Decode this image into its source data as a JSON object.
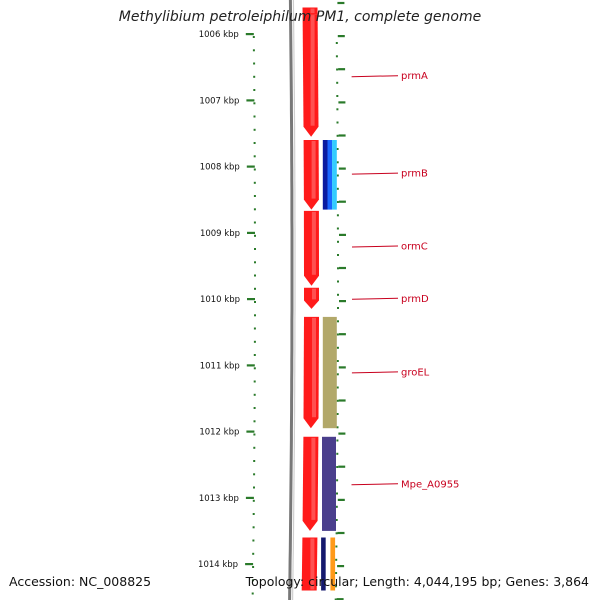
{
  "title": "Methylibium petroleiphilum PM1, complete genome",
  "accession_label": "Accession: NC_008825",
  "topology_label": "Topology: circular; Length: 4,044,195 bp; Genes: 3,864",
  "colors": {
    "backbone": "#787878",
    "tick": "#2a7a2a",
    "gene": "#ff1a1a",
    "label": "#c8001e",
    "cog_blue": "#1a66ff",
    "cog_olive": "#b2a86a",
    "cog_purple": "#4a3f8c",
    "cog_navy": "#15196e",
    "cog_orange": "#ff9a1a"
  },
  "axis": {
    "unit": "kbp",
    "ticks": [
      {
        "kbp": 1006,
        "label": "1006 kbp"
      },
      {
        "kbp": 1007,
        "label": "1007 kbp"
      },
      {
        "kbp": 1008,
        "label": "1008 kbp"
      },
      {
        "kbp": 1009,
        "label": "1009 kbp"
      },
      {
        "kbp": 1010,
        "label": "1010 kbp"
      },
      {
        "kbp": 1011,
        "label": "1011 kbp"
      },
      {
        "kbp": 1012,
        "label": "1012 kbp"
      },
      {
        "kbp": 1013,
        "label": "1013 kbp"
      },
      {
        "kbp": 1014,
        "label": "1014 kbp"
      }
    ]
  },
  "genes": [
    {
      "name": "",
      "start": 1005.6,
      "end": 1005.7,
      "arrow": false
    },
    {
      "name": "prmA",
      "start": 1005.7,
      "end": 1007.55,
      "arrow": true
    },
    {
      "name": "prmB",
      "start": 1007.6,
      "end": 1008.65,
      "arrow": true
    },
    {
      "name": "ormC",
      "start": 1008.67,
      "end": 1009.8,
      "arrow": true
    },
    {
      "name": "prmD",
      "start": 1009.83,
      "end": 1010.15,
      "arrow": true
    },
    {
      "name": "groEL",
      "start": 1010.27,
      "end": 1011.95,
      "arrow": true
    },
    {
      "name": "Mpe_A0955",
      "start": 1012.08,
      "end": 1013.5,
      "arrow": true
    },
    {
      "name": "",
      "start": 1013.6,
      "end": 1014.4,
      "arrow": false
    }
  ],
  "gene_labels": [
    {
      "text": "prmA",
      "kbp": 1006.63
    },
    {
      "text": "prmB",
      "kbp": 1008.1
    },
    {
      "text": "ormC",
      "kbp": 1009.2
    },
    {
      "text": "prmD",
      "kbp": 1009.99
    },
    {
      "text": "groEL",
      "kbp": 1011.1
    },
    {
      "text": "Mpe_A0955",
      "kbp": 1012.79
    }
  ],
  "cog_features": [
    {
      "start": 1007.6,
      "end": 1008.65,
      "colors": [
        "#0a1aa0",
        "#1a66ff",
        "#33ccff"
      ]
    },
    {
      "start": 1010.27,
      "end": 1011.95,
      "colors": [
        "#b2a86a"
      ]
    },
    {
      "start": 1012.08,
      "end": 1013.5,
      "colors": [
        "#4a3f8c"
      ]
    },
    {
      "start": 1013.6,
      "end": 1014.4,
      "colors": [
        "#15196e",
        "#ffffff",
        "#ff9a1a"
      ]
    }
  ]
}
